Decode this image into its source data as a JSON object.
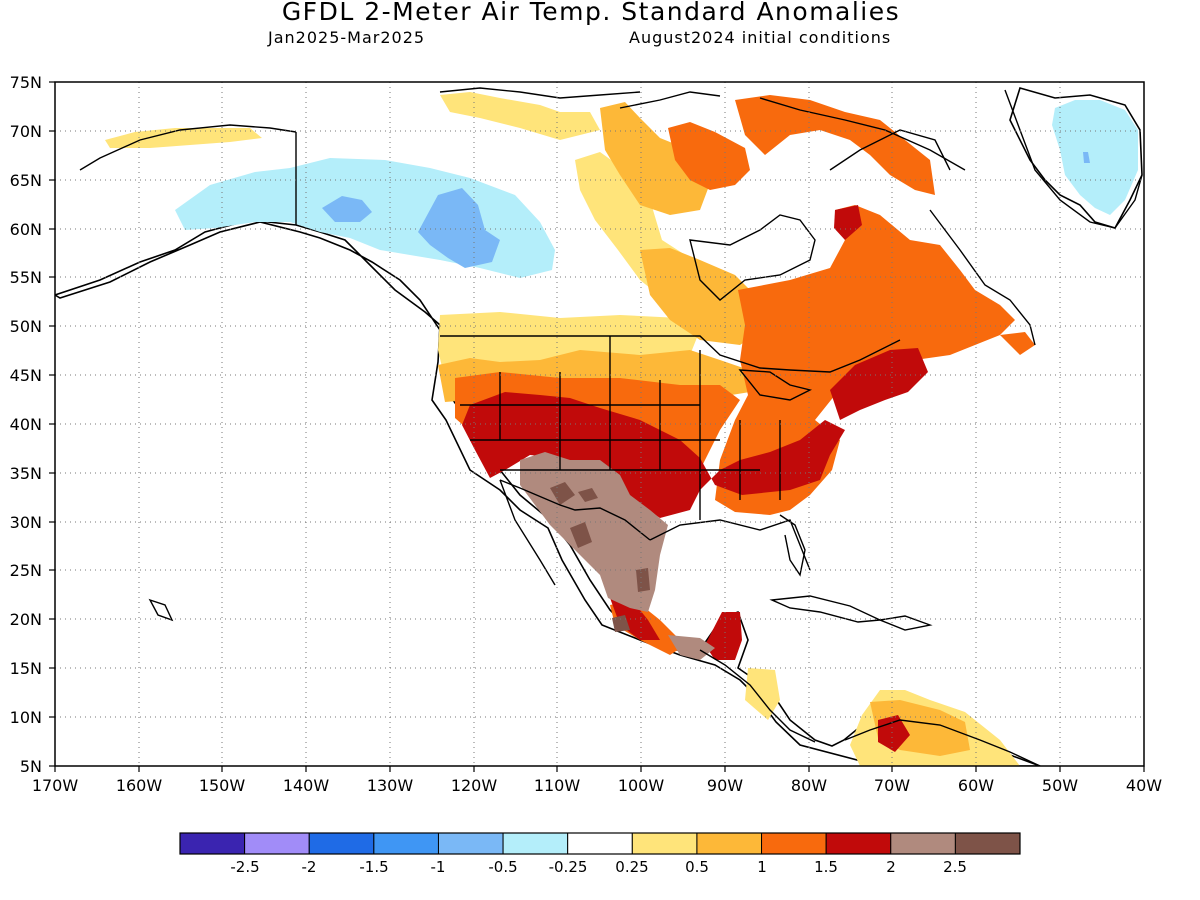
{
  "header": {
    "title": "GFDL 2-Meter Air Temp. Standard Anomalies",
    "period": "Jan2025-Mar2025",
    "init": "August2024 initial conditions"
  },
  "map": {
    "lat_labels": [
      "75N",
      "70N",
      "65N",
      "60N",
      "55N",
      "50N",
      "45N",
      "40N",
      "35N",
      "30N",
      "25N",
      "20N",
      "15N",
      "10N",
      "5N"
    ],
    "lon_labels": [
      "170W",
      "160W",
      "150W",
      "140W",
      "130W",
      "120W",
      "110W",
      "100W",
      "90W",
      "80W",
      "70W",
      "60W",
      "50W",
      "40W"
    ],
    "extent": {
      "lat_min": 5,
      "lat_max": 75,
      "lon_min": -170,
      "lon_max": -40
    }
  },
  "legend": {
    "colors": [
      "#3a24b0",
      "#a18cf8",
      "#1f6be6",
      "#3f96f4",
      "#7ab8f6",
      "#b4eefa",
      "#ffffff",
      "#ffe47a",
      "#fdb838",
      "#f86a0d",
      "#c10a0a",
      "#b08a7e",
      "#7e5348"
    ],
    "labels": [
      "-2.5",
      "-2",
      "-1.5",
      "-1",
      "-0.5",
      "-0.25",
      "0.25",
      "0.5",
      "1",
      "1.5",
      "2",
      "2.5"
    ]
  }
}
